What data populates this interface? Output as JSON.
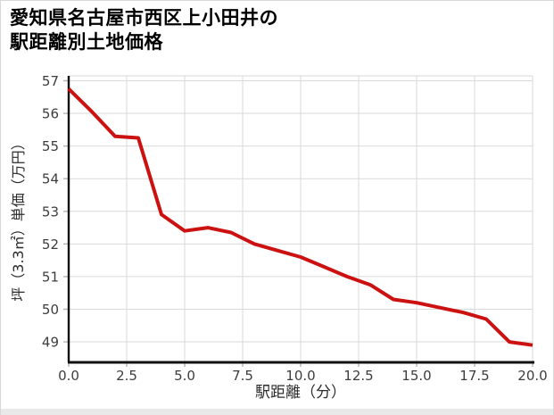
{
  "header": {
    "title_line1": "愛知県名古屋市西区上小田井の",
    "title_line2": "駅距離別土地価格"
  },
  "chart_data": {
    "type": "line",
    "title": "愛知県名古屋市西区上小田井の駅距離別土地価格",
    "xlabel": "駅距離（分）",
    "ylabel": "坪（3.3㎡）単価（万円）",
    "x": [
      0,
      1,
      2,
      3,
      4,
      5,
      6,
      7,
      8,
      9,
      10,
      11,
      12,
      13,
      14,
      15,
      16,
      17,
      18,
      19,
      20
    ],
    "values": [
      56.75,
      56.05,
      55.3,
      55.25,
      52.9,
      52.4,
      52.5,
      52.35,
      52.0,
      51.8,
      51.6,
      51.3,
      51.0,
      50.75,
      50.3,
      50.2,
      50.05,
      49.9,
      49.7,
      49.0,
      48.9
    ],
    "x_ticks": [
      0,
      2.5,
      5,
      7.5,
      10,
      12.5,
      15,
      17.5,
      20
    ],
    "x_tick_labels": [
      "0.0",
      "2.5",
      "5.0",
      "7.5",
      "10.0",
      "12.5",
      "15.0",
      "17.5",
      "20.0"
    ],
    "y_ticks": [
      49,
      50,
      51,
      52,
      53,
      54,
      55,
      56,
      57
    ],
    "xlim": [
      0,
      20
    ],
    "ylim": [
      48.4,
      57.15
    ],
    "grid": true,
    "legend_position": "none",
    "line_color": "#cc1111",
    "line_width": 4,
    "colors": {
      "grid": "#d9d9d9",
      "tick": "#b3b3b3",
      "spine": "#111111",
      "tick_label": "#3d3d3d",
      "axis_label": "#2b2b2b",
      "background": "#ffffff",
      "card_border": "#d8d8d8",
      "footer_strip": "#e9e9e9"
    }
  }
}
